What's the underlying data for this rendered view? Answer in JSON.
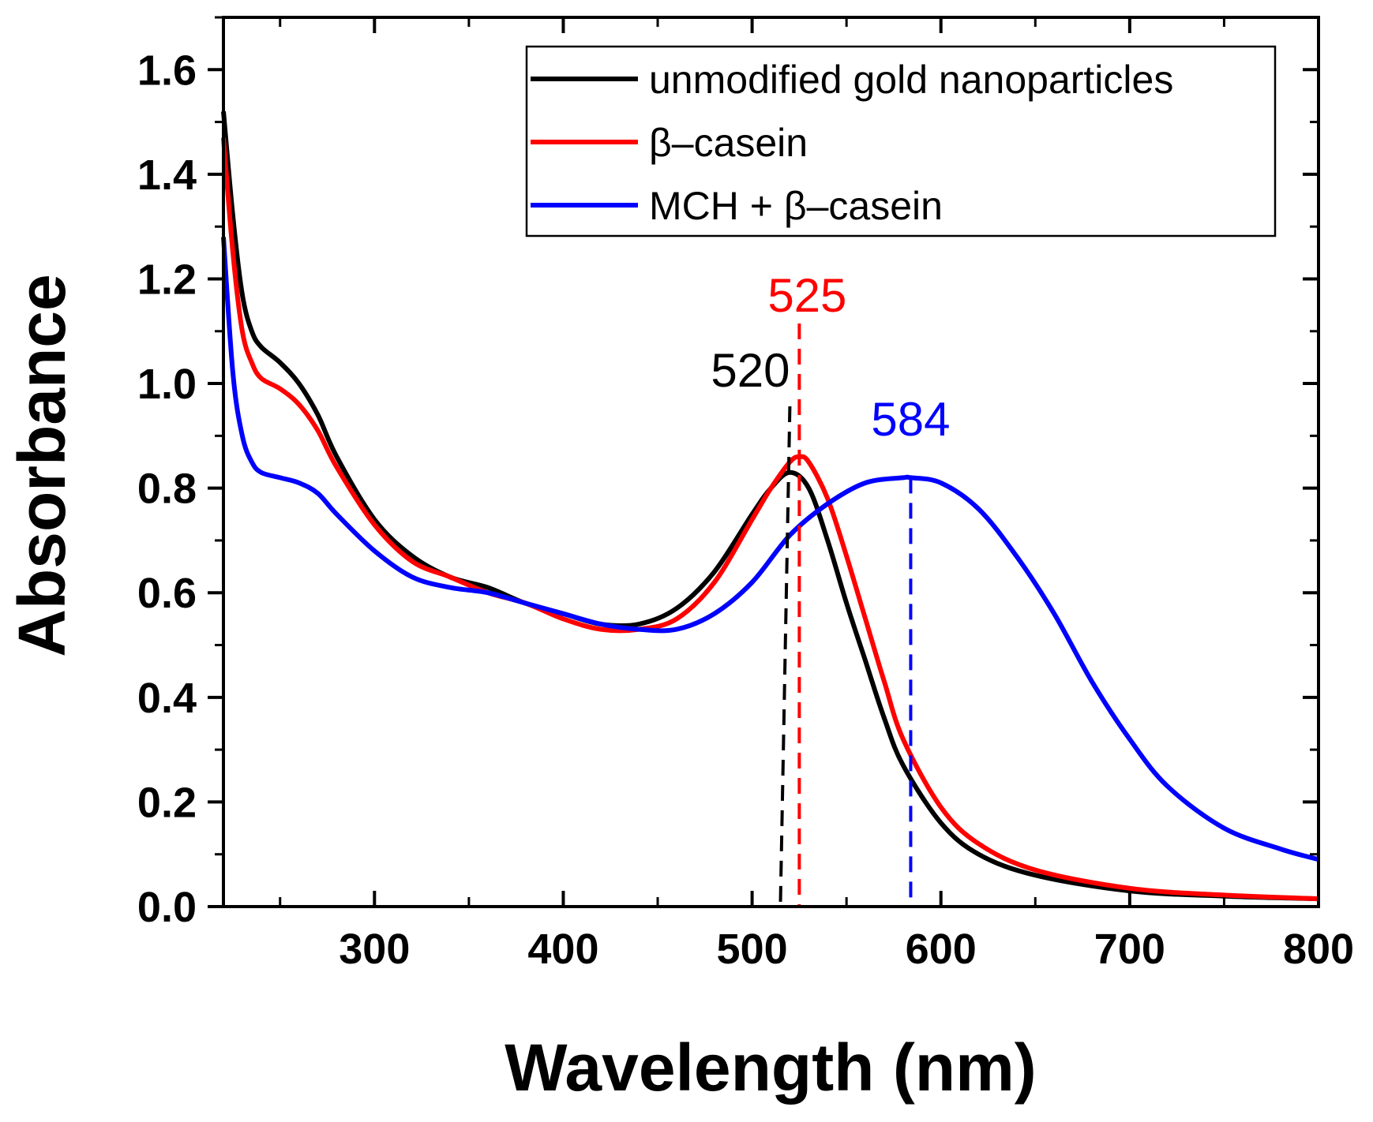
{
  "chart_data": {
    "type": "line",
    "title": "",
    "xlabel": "Wavelength (nm)",
    "ylabel": "Absorbance",
    "xlim": [
      220,
      800
    ],
    "ylim": [
      0.0,
      1.7
    ],
    "xticks": [
      300,
      400,
      500,
      600,
      700,
      800
    ],
    "xtick_labels": [
      "300",
      "400",
      "500",
      "600",
      "700",
      "800"
    ],
    "yticks": [
      0.0,
      0.2,
      0.4,
      0.6,
      0.8,
      1.0,
      1.2,
      1.4,
      1.6
    ],
    "ytick_labels": [
      "0.0",
      "0.2",
      "0.4",
      "0.6",
      "0.8",
      "1.0",
      "1.2",
      "1.4",
      "1.6"
    ],
    "grid": false,
    "legend_position": "top-right",
    "series": [
      {
        "name": "unmodified gold nanoparticles",
        "color": "#000000",
        "x": [
          220,
          225,
          230,
          235,
          240,
          250,
          260,
          270,
          280,
          300,
          320,
          340,
          360,
          380,
          400,
          420,
          440,
          460,
          480,
          500,
          510,
          520,
          530,
          540,
          550,
          560,
          570,
          580,
          600,
          620,
          650,
          700,
          750,
          800
        ],
        "y": [
          1.52,
          1.32,
          1.17,
          1.1,
          1.07,
          1.04,
          1.0,
          0.94,
          0.86,
          0.74,
          0.67,
          0.63,
          0.61,
          0.58,
          0.56,
          0.54,
          0.54,
          0.57,
          0.64,
          0.75,
          0.8,
          0.83,
          0.8,
          0.7,
          0.58,
          0.47,
          0.36,
          0.27,
          0.16,
          0.1,
          0.06,
          0.03,
          0.02,
          0.015
        ]
      },
      {
        "name": "β–casein",
        "color": "#ff0000",
        "x": [
          220,
          225,
          230,
          235,
          240,
          250,
          260,
          270,
          280,
          300,
          320,
          340,
          360,
          380,
          400,
          420,
          440,
          460,
          480,
          500,
          510,
          520,
          525,
          530,
          540,
          550,
          560,
          570,
          580,
          600,
          620,
          650,
          700,
          750,
          800
        ],
        "y": [
          1.47,
          1.25,
          1.1,
          1.04,
          1.01,
          0.99,
          0.96,
          0.91,
          0.84,
          0.73,
          0.66,
          0.63,
          0.6,
          0.58,
          0.55,
          0.53,
          0.53,
          0.55,
          0.62,
          0.74,
          0.8,
          0.85,
          0.86,
          0.85,
          0.78,
          0.67,
          0.55,
          0.43,
          0.32,
          0.19,
          0.12,
          0.07,
          0.035,
          0.022,
          0.015
        ]
      },
      {
        "name": "MCH + β–casein",
        "color": "#0000ff",
        "x": [
          220,
          225,
          230,
          235,
          240,
          250,
          260,
          270,
          280,
          300,
          320,
          340,
          360,
          380,
          400,
          420,
          440,
          460,
          480,
          500,
          520,
          540,
          560,
          580,
          584,
          600,
          620,
          640,
          660,
          680,
          700,
          720,
          750,
          780,
          800
        ],
        "y": [
          1.28,
          1.02,
          0.9,
          0.85,
          0.83,
          0.82,
          0.81,
          0.79,
          0.75,
          0.68,
          0.63,
          0.61,
          0.6,
          0.58,
          0.56,
          0.54,
          0.53,
          0.53,
          0.56,
          0.62,
          0.71,
          0.77,
          0.81,
          0.82,
          0.82,
          0.81,
          0.76,
          0.67,
          0.56,
          0.43,
          0.32,
          0.23,
          0.15,
          0.11,
          0.09
        ]
      }
    ],
    "peak_markers": [
      {
        "label": "520",
        "x": 520,
        "peak": 0.83,
        "color": "#000000"
      },
      {
        "label": "525",
        "x": 525,
        "peak": 0.86,
        "color": "#ff0000"
      },
      {
        "label": "584",
        "x": 584,
        "peak": 0.82,
        "color": "#0000ff"
      }
    ]
  }
}
